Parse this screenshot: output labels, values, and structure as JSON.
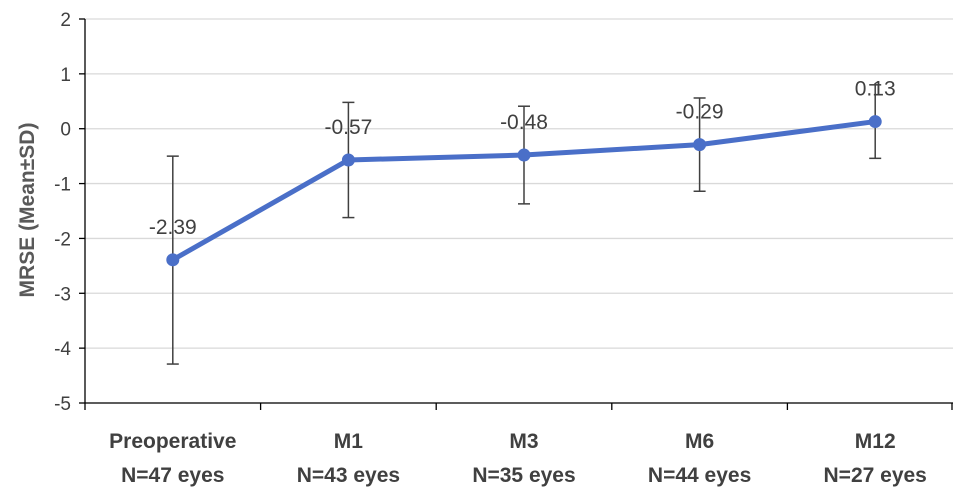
{
  "chart_data": {
    "type": "line",
    "title": "",
    "xlabel": "",
    "ylabel": "MRSE (Mean±SD)",
    "ylim": [
      -5,
      2
    ],
    "yticks": [
      "2",
      "1",
      "0",
      "-1",
      "-2",
      "-3",
      "-4",
      "-5"
    ],
    "ytick_values": [
      2,
      1,
      0,
      -1,
      -2,
      -3,
      -4,
      -5
    ],
    "grid": "horizontal",
    "categories": [
      {
        "name": "Preoperative",
        "n": "N=47 eyes"
      },
      {
        "name": "M1",
        "n": "N=43 eyes"
      },
      {
        "name": "M3",
        "n": "N=35 eyes"
      },
      {
        "name": "M6",
        "n": "N=44 eyes"
      },
      {
        "name": "M12",
        "n": "N=27 eyes"
      }
    ],
    "series": [
      {
        "values": [
          -2.39,
          -0.57,
          -0.48,
          -0.29,
          0.13
        ],
        "labels": [
          "-2.39",
          "-0.57",
          "-0.48",
          "-0.29",
          "0.13"
        ],
        "err_low": [
          -4.29,
          -1.62,
          -1.37,
          -1.14,
          -0.54
        ],
        "err_high": [
          -0.5,
          0.48,
          0.41,
          0.56,
          0.8
        ],
        "color": "#4a6fc8"
      }
    ],
    "gridline_color": "#d9d9d9",
    "axis_color": "#000000",
    "errorbar_color": "#404040"
  }
}
